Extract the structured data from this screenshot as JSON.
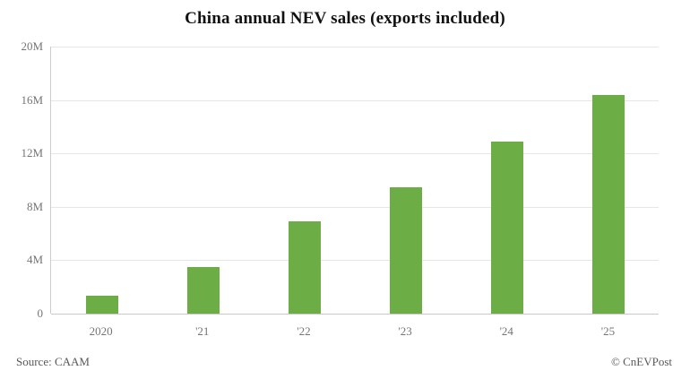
{
  "header": {
    "title": "China annual NEV sales (exports included)"
  },
  "footer": {
    "source_label": "Source: CAAM",
    "copyright_label": "© CnEVPost"
  },
  "colors": {
    "bar": "#6cad46",
    "grid": "#e6e6e6",
    "axis_line": "#c9c9c9",
    "tick_text": "#757575",
    "title_text": "#111111",
    "footer_text": "#595959",
    "background": "#ffffff"
  },
  "chart_data": {
    "type": "bar",
    "title": "China annual NEV sales (exports included)",
    "categories": [
      "2020",
      "'21",
      "'22",
      "'23",
      "'24",
      "'25"
    ],
    "values": [
      1.37,
      3.52,
      6.89,
      9.49,
      12.87,
      16.4
    ],
    "unit": "millions of vehicles",
    "xlabel": "",
    "ylabel": "",
    "ylim": [
      0,
      20
    ],
    "yticks": [
      0,
      4,
      8,
      12,
      16,
      20
    ],
    "ytick_labels": [
      "0",
      "4M",
      "8M",
      "12M",
      "16M",
      "20M"
    ],
    "grid": true,
    "legend": false,
    "source": "CAAM",
    "attribution": "CnEVPost"
  }
}
